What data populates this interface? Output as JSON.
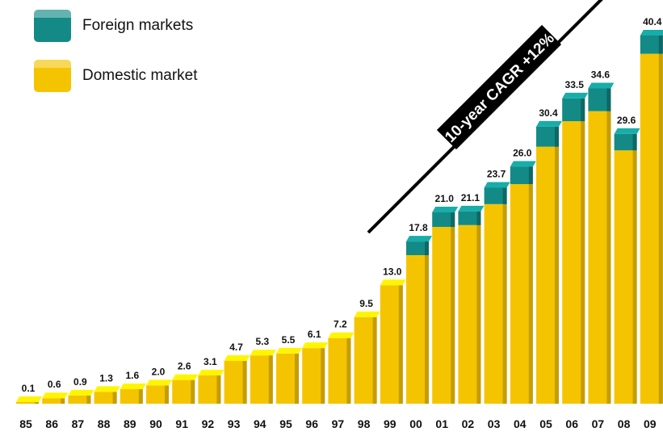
{
  "chart_data": {
    "type": "bar",
    "stacked": true,
    "categories": [
      "85",
      "86",
      "87",
      "88",
      "89",
      "90",
      "91",
      "92",
      "93",
      "94",
      "95",
      "96",
      "97",
      "98",
      "99",
      "00",
      "01",
      "02",
      "03",
      "04",
      "05",
      "06",
      "07",
      "08",
      "09"
    ],
    "totals": [
      0.1,
      0.6,
      0.9,
      1.3,
      1.6,
      2.0,
      2.6,
      3.1,
      4.7,
      5.3,
      5.5,
      6.1,
      7.2,
      9.5,
      13.0,
      17.8,
      21.0,
      21.1,
      23.7,
      26.0,
      30.4,
      33.5,
      34.6,
      29.6,
      40.4
    ],
    "total_labels": [
      "0.1",
      "0.6",
      "0.9",
      "1.3",
      "1.6",
      "2.0",
      "2.6",
      "3.1",
      "4.7",
      "5.3",
      "5.5",
      "6.1",
      "7.2",
      "9.5",
      "13.0",
      "17.8",
      "21.0",
      "21.1",
      "23.7",
      "26.0",
      "30.4",
      "33.5",
      "34.6",
      "29.6",
      "40.4"
    ],
    "series": [
      {
        "name": "Domestic market",
        "color": "#f5c400",
        "values": [
          0.1,
          0.6,
          0.9,
          1.3,
          1.6,
          2.0,
          2.6,
          3.1,
          4.7,
          5.3,
          5.5,
          6.1,
          7.2,
          9.5,
          13.0,
          16.3,
          19.4,
          19.6,
          21.9,
          24.1,
          28.2,
          31.0,
          32.1,
          27.8,
          38.4
        ]
      },
      {
        "name": "Foreign markets",
        "color": "#138a86",
        "values": [
          0,
          0,
          0,
          0,
          0,
          0,
          0,
          0,
          0,
          0,
          0,
          0,
          0,
          0,
          0,
          1.5,
          1.6,
          1.5,
          1.8,
          1.9,
          2.2,
          2.5,
          2.5,
          1.8,
          2.0
        ]
      }
    ],
    "ylim": [
      0,
      42
    ],
    "legend_position": "top-left",
    "annotation": "10-year CAGR +12%"
  }
}
